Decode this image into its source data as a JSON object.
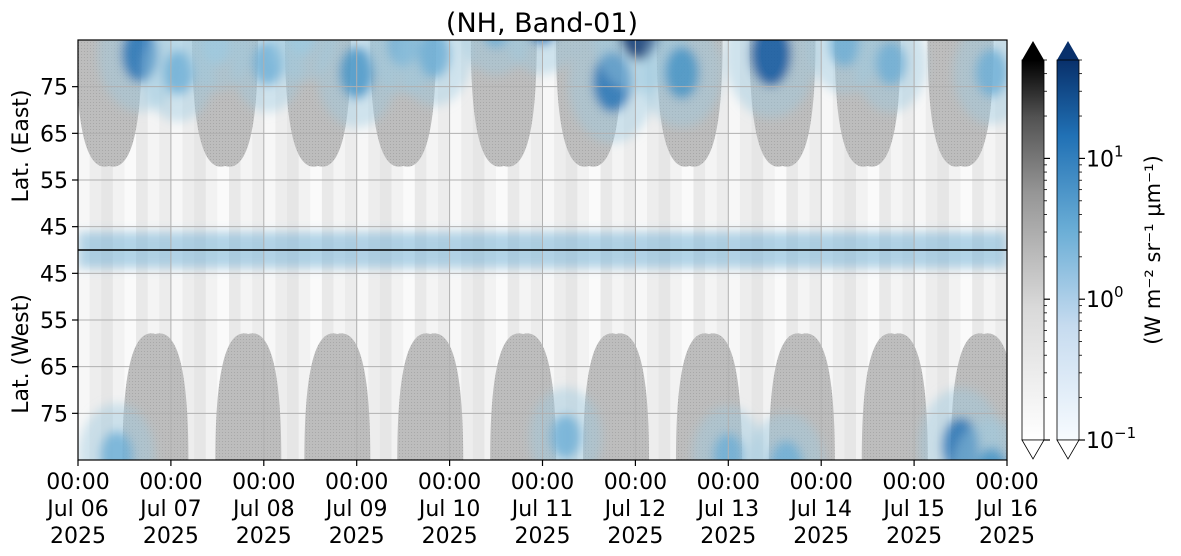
{
  "chart_data": {
    "type": "heatmap",
    "title": "(NH, Band-01)",
    "ylabel_top": "Lat. (East)",
    "ylabel_bottom": "Lat. (West)",
    "colorbar_label": "(W m⁻² sr⁻¹ μm⁻¹)",
    "colorbar_scale": "log",
    "colorbar_range": [
      0.1,
      50
    ],
    "colorbar_ticks": [
      {
        "value": 0.1,
        "label": "10",
        "exp": "−1"
      },
      {
        "value": 1,
        "label": "10",
        "exp": "0"
      },
      {
        "value": 10,
        "label": "10",
        "exp": "1"
      }
    ],
    "colormaps": [
      "greys",
      "blues"
    ],
    "colors": {
      "blue_dark": "#08306b",
      "blue_mid": "#2171b5",
      "blue_light": "#c6dbef",
      "grey_fill": "#bdbdbd",
      "black": "#000000"
    },
    "x_range": [
      "2025-07-06 00:00",
      "2025-07-16 00:00"
    ],
    "x_ticks": [
      {
        "time": "00:00",
        "date": "Jul 06",
        "year": "2025"
      },
      {
        "time": "00:00",
        "date": "Jul 07",
        "year": "2025"
      },
      {
        "time": "00:00",
        "date": "Jul 08",
        "year": "2025"
      },
      {
        "time": "00:00",
        "date": "Jul 09",
        "year": "2025"
      },
      {
        "time": "00:00",
        "date": "Jul 10",
        "year": "2025"
      },
      {
        "time": "00:00",
        "date": "Jul 11",
        "year": "2025"
      },
      {
        "time": "00:00",
        "date": "Jul 12",
        "year": "2025"
      },
      {
        "time": "00:00",
        "date": "Jul 13",
        "year": "2025"
      },
      {
        "time": "00:00",
        "date": "Jul 14",
        "year": "2025"
      },
      {
        "time": "00:00",
        "date": "Jul 15",
        "year": "2025"
      },
      {
        "time": "00:00",
        "date": "Jul 16",
        "year": "2025"
      }
    ],
    "y_ticks_east": [
      "45",
      "55",
      "65",
      "75"
    ],
    "y_ticks_west": [
      "75",
      "65",
      "55",
      "45"
    ],
    "y_range": [
      40,
      85
    ],
    "grid": true,
    "divider": "pole (90°N)",
    "no_data_regions": [
      {
        "side": "east",
        "center": "Jul 06 08:00"
      },
      {
        "side": "east",
        "center": "Jul 07 14:00"
      },
      {
        "side": "east",
        "center": "Jul 08 14:00"
      },
      {
        "side": "east",
        "center": "Jul 09 12:00"
      },
      {
        "side": "east",
        "center": "Jul 10 14:00"
      },
      {
        "side": "east",
        "center": "Jul 11 12:00"
      },
      {
        "side": "east",
        "center": "Jul 12 14:00"
      },
      {
        "side": "east",
        "center": "Jul 13 14:00"
      },
      {
        "side": "east",
        "center": "Jul 14 12:00"
      },
      {
        "side": "east",
        "center": "Jul 15 12:00"
      },
      {
        "side": "west",
        "center": "Jul 06 20:00"
      },
      {
        "side": "west",
        "center": "Jul 07 20:00"
      },
      {
        "side": "west",
        "center": "Jul 08 19:00"
      },
      {
        "side": "west",
        "center": "Jul 09 19:00"
      },
      {
        "side": "west",
        "center": "Jul 10 19:00"
      },
      {
        "side": "west",
        "center": "Jul 11 19:00"
      },
      {
        "side": "west",
        "center": "Jul 12 19:00"
      },
      {
        "side": "west",
        "center": "Jul 13 19:00"
      },
      {
        "side": "west",
        "center": "Jul 14 19:00"
      },
      {
        "side": "west",
        "center": "Jul 15 18:00"
      }
    ],
    "aurora_blobs": [
      {
        "time": "Jul 06 16:00",
        "lat_signed": 8,
        "intensity": 6
      },
      {
        "time": "Jul 06 10:00",
        "lat_signed": -6,
        "intensity": 4
      },
      {
        "time": "Jul 07 02:00",
        "lat_signed": 12,
        "intensity": 3
      },
      {
        "time": "Jul 07 12:00",
        "lat_signed": 6,
        "intensity": 2
      },
      {
        "time": "Jul 08 01:00",
        "lat_signed": 10,
        "intensity": 3
      },
      {
        "time": "Jul 08 10:00",
        "lat_signed": 4,
        "intensity": 2
      },
      {
        "time": "Jul 09 00:00",
        "lat_signed": 12,
        "intensity": 5
      },
      {
        "time": "Jul 09 12:00",
        "lat_signed": 6,
        "intensity": 3
      },
      {
        "time": "Jul 09 20:00",
        "lat_signed": 8,
        "intensity": 4
      },
      {
        "time": "Jul 10 12:00",
        "lat_signed": 2,
        "intensity": 3
      },
      {
        "time": "Jul 11 00:00",
        "lat_signed": 0,
        "intensity": 6
      },
      {
        "time": "Jul 11 06:00",
        "lat_signed": -10,
        "intensity": 3
      },
      {
        "time": "Jul 11 18:00",
        "lat_signed": 14,
        "intensity": 7
      },
      {
        "time": "Jul 12 01:00",
        "lat_signed": 2,
        "intensity": 9
      },
      {
        "time": "Jul 12 12:00",
        "lat_signed": 12,
        "intensity": 5
      },
      {
        "time": "Jul 13 00:00",
        "lat_signed": -6,
        "intensity": 3
      },
      {
        "time": "Jul 13 11:00",
        "lat_signed": 8,
        "intensity": 8
      },
      {
        "time": "Jul 13 15:00",
        "lat_signed": -4,
        "intensity": 4
      },
      {
        "time": "Jul 14 06:00",
        "lat_signed": 6,
        "intensity": 3
      },
      {
        "time": "Jul 14 18:00",
        "lat_signed": 10,
        "intensity": 3
      },
      {
        "time": "Jul 15 12:00",
        "lat_signed": -8,
        "intensity": 6
      },
      {
        "time": "Jul 15 20:00",
        "lat_signed": 12,
        "intensity": 4
      },
      {
        "time": "Jul 15 20:00",
        "lat_signed": -2,
        "intensity": 5
      }
    ]
  }
}
